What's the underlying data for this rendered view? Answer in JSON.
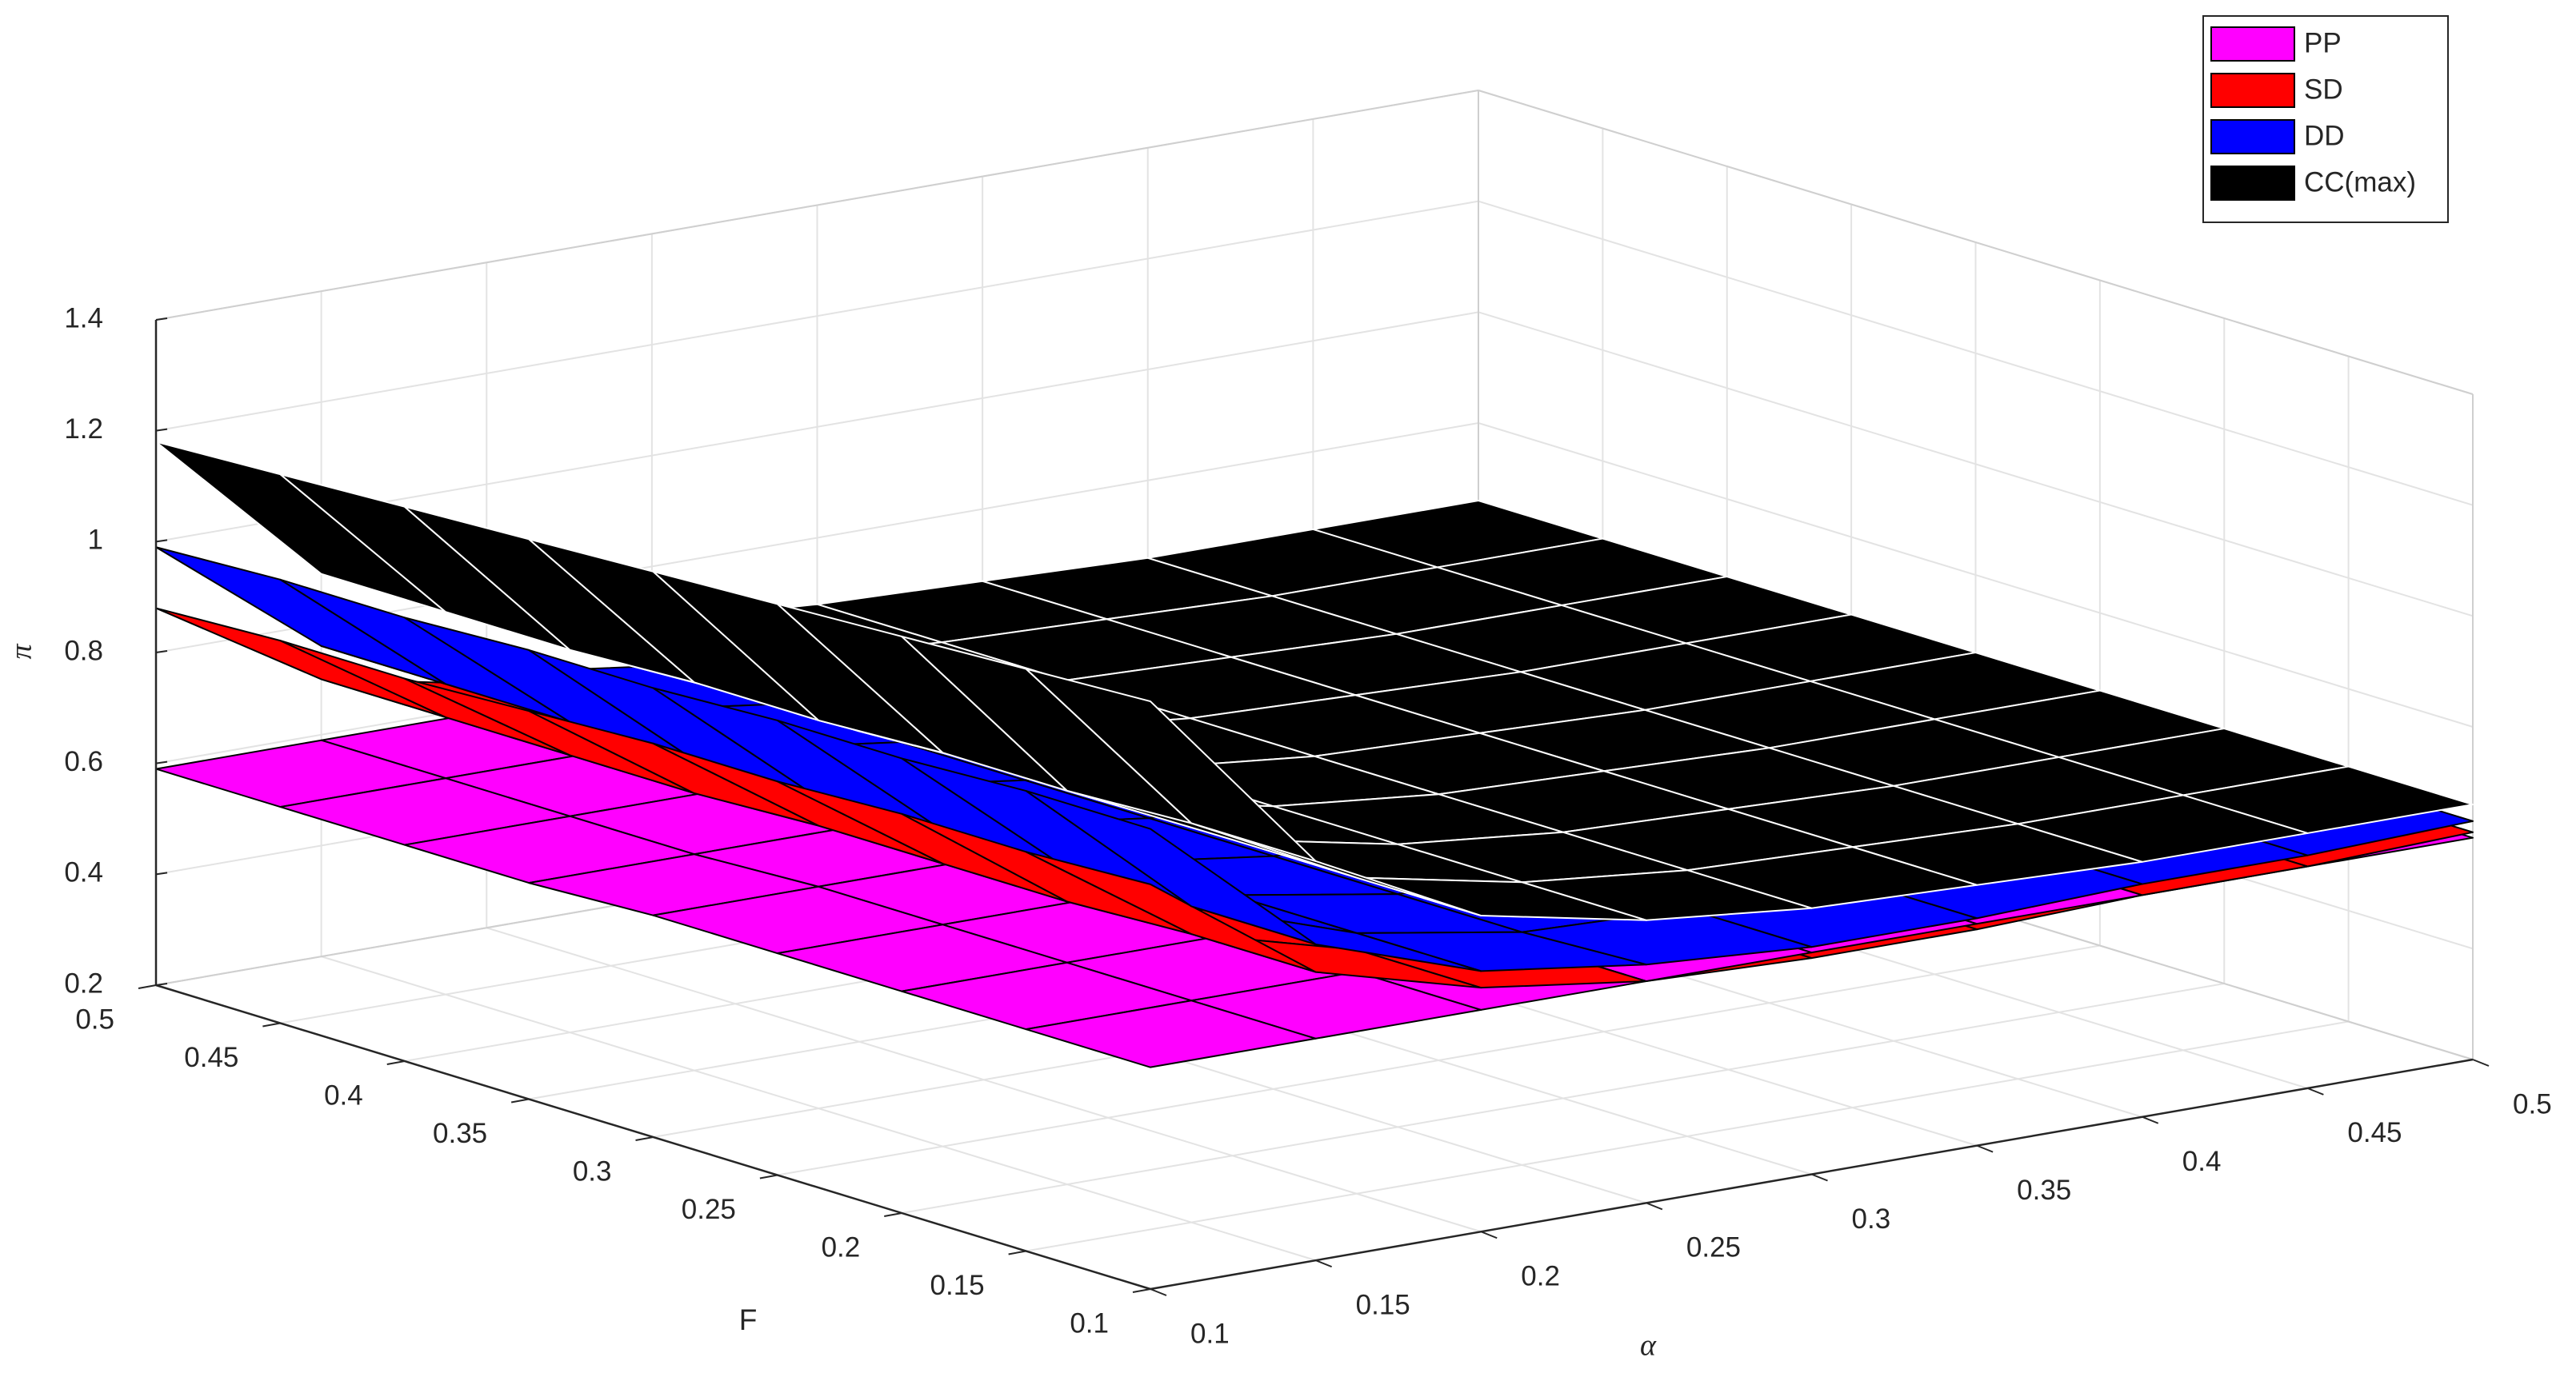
{
  "chart_data": {
    "type": "surface",
    "xlabel": "α",
    "ylabel": "F",
    "zlabel": "π",
    "x": [
      0.1,
      0.15,
      0.2,
      0.25,
      0.3,
      0.35,
      0.4,
      0.45,
      0.5
    ],
    "y": [
      0.1,
      0.15,
      0.2,
      0.25,
      0.3,
      0.35,
      0.4,
      0.45,
      0.5
    ],
    "xlim": [
      0.1,
      0.5
    ],
    "ylim": [
      0.1,
      0.5
    ],
    "zlim": [
      0.2,
      1.4
    ],
    "xticks": [
      0.1,
      0.15,
      0.2,
      0.25,
      0.3,
      0.35,
      0.4,
      0.45,
      0.5
    ],
    "yticks": [
      0.1,
      0.15,
      0.2,
      0.25,
      0.3,
      0.35,
      0.4,
      0.45,
      0.5
    ],
    "zticks": [
      0.2,
      0.4,
      0.6,
      0.8,
      1,
      1.2,
      1.4
    ],
    "grid": true,
    "legend": "northeast",
    "series": [
      {
        "name": "PP",
        "color": "#ff00ff",
        "edgecolor": "#000000",
        "values": [
          [
            0.6,
            0.6,
            0.6,
            0.6,
            0.6,
            0.6,
            0.6,
            0.6,
            0.6
          ],
          [
            0.6,
            0.6,
            0.6,
            0.6,
            0.6,
            0.6,
            0.6,
            0.6,
            0.6
          ],
          [
            0.6,
            0.6,
            0.6,
            0.6,
            0.6,
            0.6,
            0.6,
            0.6,
            0.6
          ],
          [
            0.6,
            0.6,
            0.6,
            0.6,
            0.6,
            0.6,
            0.6,
            0.6,
            0.6
          ],
          [
            0.6,
            0.6,
            0.6,
            0.6,
            0.6,
            0.6,
            0.6,
            0.6,
            0.6
          ],
          [
            0.59,
            0.59,
            0.59,
            0.59,
            0.59,
            0.59,
            0.59,
            0.59,
            0.59
          ],
          [
            0.59,
            0.59,
            0.59,
            0.59,
            0.59,
            0.59,
            0.59,
            0.59,
            0.59
          ],
          [
            0.59,
            0.59,
            0.59,
            0.59,
            0.59,
            0.59,
            0.59,
            0.59,
            0.59
          ],
          [
            0.59,
            0.59,
            0.59,
            0.59,
            0.59,
            0.59,
            0.59,
            0.59,
            0.59
          ]
        ]
      },
      {
        "name": "SD",
        "color": "#ff0000",
        "edgecolor": "#000000",
        "values": [
          [
            0.93,
            0.72,
            0.64,
            0.6,
            0.59,
            0.59,
            0.6,
            0.6,
            0.61
          ],
          [
            0.92,
            0.72,
            0.64,
            0.6,
            0.59,
            0.59,
            0.6,
            0.6,
            0.61
          ],
          [
            0.92,
            0.71,
            0.64,
            0.6,
            0.59,
            0.59,
            0.6,
            0.6,
            0.61
          ],
          [
            0.91,
            0.71,
            0.64,
            0.6,
            0.59,
            0.59,
            0.6,
            0.6,
            0.61
          ],
          [
            0.91,
            0.71,
            0.64,
            0.6,
            0.59,
            0.59,
            0.6,
            0.6,
            0.61
          ],
          [
            0.9,
            0.7,
            0.64,
            0.6,
            0.59,
            0.59,
            0.6,
            0.6,
            0.61
          ],
          [
            0.89,
            0.7,
            0.64,
            0.6,
            0.59,
            0.59,
            0.6,
            0.6,
            0.61
          ],
          [
            0.89,
            0.7,
            0.64,
            0.6,
            0.59,
            0.59,
            0.6,
            0.6,
            0.61
          ],
          [
            0.88,
            0.7,
            0.64,
            0.6,
            0.59,
            0.59,
            0.6,
            0.6,
            0.61
          ]
        ]
      },
      {
        "name": "DD",
        "color": "#0000ff",
        "edgecolor": "#000000",
        "values": [
          [
            1.03,
            0.77,
            0.67,
            0.63,
            0.61,
            0.61,
            0.62,
            0.62,
            0.63
          ],
          [
            1.03,
            0.77,
            0.67,
            0.62,
            0.61,
            0.61,
            0.62,
            0.62,
            0.63
          ],
          [
            1.02,
            0.77,
            0.67,
            0.62,
            0.61,
            0.61,
            0.62,
            0.62,
            0.63
          ],
          [
            1.02,
            0.77,
            0.66,
            0.62,
            0.61,
            0.61,
            0.62,
            0.62,
            0.63
          ],
          [
            1.01,
            0.76,
            0.66,
            0.62,
            0.61,
            0.61,
            0.62,
            0.62,
            0.63
          ],
          [
            1.01,
            0.76,
            0.66,
            0.62,
            0.61,
            0.61,
            0.62,
            0.62,
            0.63
          ],
          [
            1.0,
            0.76,
            0.66,
            0.62,
            0.61,
            0.61,
            0.62,
            0.62,
            0.63
          ],
          [
            1.0,
            0.76,
            0.66,
            0.62,
            0.61,
            0.61,
            0.62,
            0.62,
            0.63
          ],
          [
            0.99,
            0.76,
            0.66,
            0.62,
            0.61,
            0.61,
            0.62,
            0.62,
            0.63
          ]
        ]
      },
      {
        "name": "CC(max)",
        "color": "#000000",
        "edgecolor": "#ffffff",
        "values": [
          [
            1.26,
            0.92,
            0.77,
            0.71,
            0.68,
            0.67,
            0.66,
            0.66,
            0.66
          ],
          [
            1.25,
            0.92,
            0.77,
            0.71,
            0.68,
            0.67,
            0.66,
            0.66,
            0.66
          ],
          [
            1.24,
            0.91,
            0.77,
            0.71,
            0.68,
            0.67,
            0.66,
            0.66,
            0.66
          ],
          [
            1.23,
            0.91,
            0.77,
            0.71,
            0.68,
            0.67,
            0.66,
            0.66,
            0.66
          ],
          [
            1.22,
            0.9,
            0.77,
            0.71,
            0.68,
            0.67,
            0.66,
            0.66,
            0.66
          ],
          [
            1.21,
            0.9,
            0.76,
            0.71,
            0.68,
            0.67,
            0.66,
            0.66,
            0.66
          ],
          [
            1.2,
            0.89,
            0.76,
            0.7,
            0.68,
            0.67,
            0.66,
            0.66,
            0.66
          ],
          [
            1.19,
            0.89,
            0.76,
            0.7,
            0.68,
            0.67,
            0.66,
            0.66,
            0.66
          ],
          [
            1.18,
            0.89,
            0.76,
            0.7,
            0.68,
            0.67,
            0.66,
            0.66,
            0.66
          ]
        ]
      }
    ]
  }
}
